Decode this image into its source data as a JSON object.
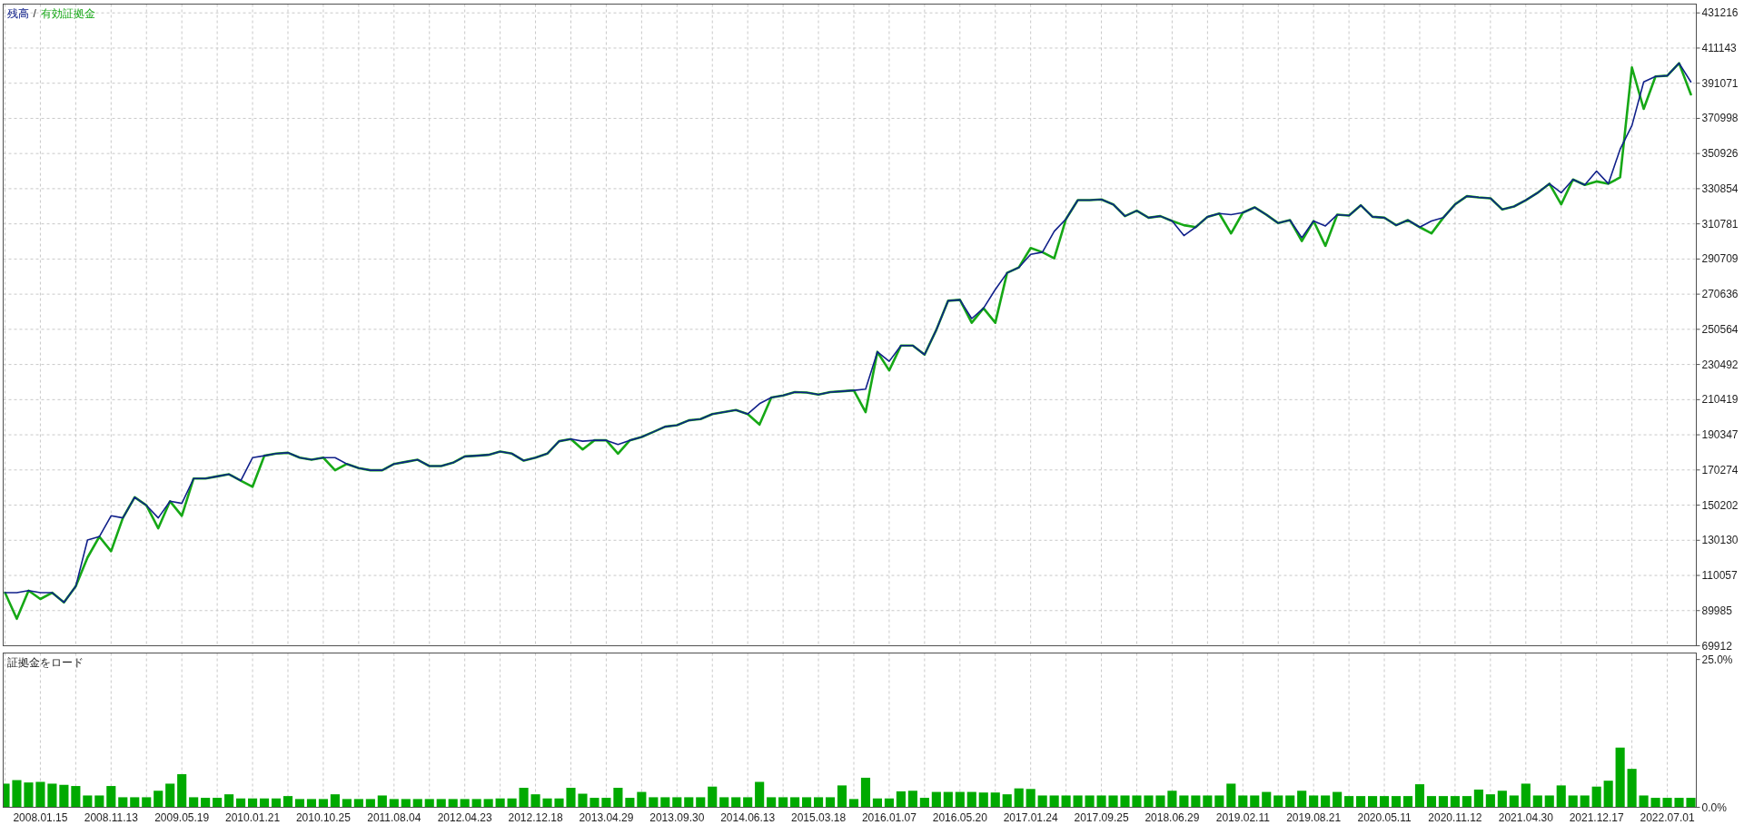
{
  "chart_data": [
    {
      "type": "line",
      "legend": "top left",
      "annotations": [
        "/"
      ],
      "grid": true,
      "tick_labels": "y",
      "categories": [
        null,
        null,
        null,
        "2008.01.15",
        null,
        null,
        null,
        null,
        null,
        "2008.11.13",
        null,
        null,
        null,
        null,
        null,
        "2009.05.19",
        null,
        null,
        null,
        null,
        null,
        "2010.01.21",
        null,
        null,
        null,
        null,
        null,
        "2010.10.25",
        null,
        null,
        null,
        null,
        null,
        "2011.08.04",
        null,
        null,
        null,
        null,
        null,
        "2012.04.23",
        null,
        null,
        null,
        null,
        null,
        "2012.12.18",
        null,
        null,
        null,
        null,
        null,
        "2013.04.29",
        null,
        null,
        null,
        null,
        null,
        "2013.09.30",
        null,
        null,
        null,
        null,
        null,
        "2014.06.13",
        null,
        null,
        null,
        null,
        null,
        "2015.03.18",
        null,
        null,
        null,
        null,
        null,
        "2016.01.07",
        null,
        null,
        null,
        null,
        null,
        "2016.05.20",
        null,
        null,
        null,
        null,
        null,
        "2017.01.24",
        null,
        null,
        null,
        null,
        null,
        "2017.09.25",
        null,
        null,
        null,
        null,
        null,
        "2018.06.29",
        null,
        null,
        null,
        null,
        null,
        "2019.02.11",
        null,
        null,
        null,
        null,
        null,
        "2019.08.21",
        null,
        null,
        null,
        null,
        null,
        "2020.05.11",
        null,
        null,
        null,
        null,
        null,
        "2020.11.12",
        null,
        null,
        null,
        null,
        null,
        "2021.04.30",
        null,
        null,
        null,
        null,
        null,
        "2021.12.17",
        null,
        null,
        null,
        null,
        null,
        "2022.07.01",
        null,
        null
      ],
      "ylim": [
        69912,
        436250
      ],
      "yticks": [
        69912,
        89985,
        110057,
        130130,
        150202,
        170274,
        190347,
        210419,
        230492,
        250564,
        270636,
        290709,
        310781,
        330854,
        350926,
        370998,
        391071,
        411143,
        431216
      ],
      "series": [
        {
          "name": "残高",
          "color": "#10208a",
          "values": [
            100200,
            100200,
            101400,
            100200,
            100200,
            94700,
            103800,
            130300,
            132200,
            144100,
            142900,
            154700,
            150000,
            142900,
            152400,
            151200,
            165400,
            165400,
            166600,
            167800,
            164200,
            177300,
            178400,
            179600,
            180100,
            177300,
            176100,
            177300,
            177300,
            173700,
            171300,
            170100,
            170100,
            173700,
            174900,
            176100,
            172500,
            172500,
            174400,
            178000,
            178400,
            178900,
            180800,
            179600,
            175600,
            177300,
            179600,
            186700,
            187900,
            186700,
            187200,
            187200,
            184800,
            187200,
            189100,
            192000,
            195000,
            195800,
            198600,
            199300,
            202200,
            203300,
            204500,
            202200,
            208100,
            211600,
            212800,
            214700,
            214500,
            213300,
            214700,
            215200,
            215700,
            216400,
            237700,
            232300,
            241300,
            241300,
            236100,
            250300,
            266900,
            267400,
            256700,
            262600,
            273300,
            282800,
            285900,
            293400,
            294600,
            306500,
            313600,
            324300,
            324300,
            324700,
            321900,
            315200,
            318300,
            314300,
            315200,
            312400,
            304100,
            308900,
            314800,
            316700,
            316000,
            317200,
            320200,
            316000,
            311200,
            312900,
            302900,
            312400,
            309600,
            316000,
            315500,
            321400,
            314800,
            314300,
            310000,
            312900,
            308900,
            312400,
            314300,
            321900,
            326600,
            325900,
            325400,
            319000,
            320700,
            324300,
            328500,
            333700,
            328500,
            336100,
            333000,
            340900,
            333700,
            353400,
            366900,
            391800,
            394900,
            395400,
            402500,
            391800
          ]
        },
        {
          "name": "有効証拠金",
          "color": "#16a816",
          "values": [
            100200,
            85300,
            101400,
            96600,
            100200,
            94700,
            103800,
            120300,
            132200,
            123900,
            142900,
            154700,
            150000,
            137000,
            152400,
            144100,
            165400,
            165400,
            166600,
            167800,
            164200,
            160700,
            178400,
            179600,
            180100,
            177300,
            176100,
            177300,
            170100,
            173700,
            171300,
            170100,
            170100,
            173700,
            174900,
            176100,
            172500,
            172500,
            174400,
            178000,
            178400,
            178900,
            180800,
            179600,
            175600,
            177300,
            179600,
            186700,
            187900,
            182000,
            187200,
            187200,
            179600,
            187200,
            189100,
            192000,
            195000,
            195800,
            198600,
            199300,
            202200,
            203300,
            204500,
            202200,
            196200,
            211600,
            212800,
            214700,
            214500,
            213300,
            214700,
            215200,
            215700,
            203300,
            237700,
            227100,
            241300,
            241300,
            236100,
            250300,
            266900,
            267400,
            254300,
            262600,
            254300,
            282800,
            285900,
            297000,
            294600,
            291100,
            313600,
            324300,
            324300,
            324700,
            321900,
            315200,
            318300,
            314300,
            315200,
            312400,
            310000,
            308900,
            314800,
            316700,
            305300,
            317200,
            320200,
            316000,
            311200,
            312900,
            301000,
            312400,
            298200,
            316000,
            315500,
            321400,
            314800,
            314300,
            310000,
            312900,
            308900,
            305300,
            314300,
            321900,
            326600,
            325900,
            325400,
            319000,
            320700,
            324300,
            328500,
            333700,
            321900,
            336100,
            333000,
            335000,
            333700,
            337300,
            400100,
            376400,
            394900,
            395400,
            402500,
            384700
          ]
        }
      ]
    },
    {
      "type": "bar",
      "title": "証拠金をロード",
      "grid": "x",
      "color": "#00aa00",
      "categories": [
        null,
        null,
        null,
        "2008.01.15",
        null,
        null,
        null,
        null,
        null,
        "2008.11.13",
        null,
        null,
        null,
        null,
        null,
        "2009.05.19",
        null,
        null,
        null,
        null,
        null,
        "2010.01.21",
        null,
        null,
        null,
        null,
        null,
        "2010.10.25",
        null,
        null,
        null,
        null,
        null,
        "2011.08.04",
        null,
        null,
        null,
        null,
        null,
        "2012.04.23",
        null,
        null,
        null,
        null,
        null,
        "2012.12.18",
        null,
        null,
        null,
        null,
        null,
        "2013.04.29",
        null,
        null,
        null,
        null,
        null,
        "2013.09.30",
        null,
        null,
        null,
        null,
        null,
        "2014.06.13",
        null,
        null,
        null,
        null,
        null,
        "2015.03.18",
        null,
        null,
        null,
        null,
        null,
        "2016.01.07",
        null,
        null,
        null,
        null,
        null,
        "2016.05.20",
        null,
        null,
        null,
        null,
        null,
        "2017.01.24",
        null,
        null,
        null,
        null,
        null,
        "2017.09.25",
        null,
        null,
        null,
        null,
        null,
        "2018.06.29",
        null,
        null,
        null,
        null,
        null,
        "2019.02.11",
        null,
        null,
        null,
        null,
        null,
        "2019.08.21",
        null,
        null,
        null,
        null,
        null,
        "2020.05.11",
        null,
        null,
        null,
        null,
        null,
        "2020.11.12",
        null,
        null,
        null,
        null,
        null,
        "2021.04.30",
        null,
        null,
        null,
        null,
        null,
        "2021.12.17",
        null,
        null,
        null,
        null,
        null,
        "2022.07.01",
        null,
        null
      ],
      "ylim": [
        0,
        26.1
      ],
      "yticks": [
        {
          "value": 0,
          "label": "0.0%"
        },
        {
          "value": 25,
          "label": "25.0%"
        }
      ],
      "values": [
        4.0,
        4.6,
        4.2,
        4.3,
        4.0,
        3.8,
        3.6,
        2.0,
        2.0,
        3.6,
        1.7,
        1.7,
        1.7,
        2.8,
        4.0,
        5.6,
        1.7,
        1.6,
        1.6,
        2.2,
        1.5,
        1.5,
        1.5,
        1.5,
        1.9,
        1.4,
        1.4,
        1.4,
        2.2,
        1.4,
        1.4,
        1.4,
        2.0,
        1.4,
        1.4,
        1.4,
        1.4,
        1.4,
        1.4,
        1.4,
        1.4,
        1.4,
        1.5,
        1.5,
        3.3,
        2.2,
        1.5,
        1.5,
        3.3,
        2.3,
        1.6,
        1.6,
        3.3,
        1.6,
        2.6,
        1.7,
        1.7,
        1.7,
        1.7,
        1.7,
        3.5,
        1.7,
        1.7,
        1.7,
        4.3,
        1.7,
        1.7,
        1.7,
        1.7,
        1.7,
        1.7,
        3.7,
        1.4,
        5.0,
        1.5,
        1.5,
        2.7,
        2.8,
        1.6,
        2.6,
        2.6,
        2.6,
        2.6,
        2.5,
        2.5,
        2.2,
        3.2,
        3.1,
        2.0,
        2.0,
        2.0,
        2.0,
        2.0,
        2.0,
        2.0,
        2.0,
        2.0,
        2.0,
        2.0,
        2.8,
        2.0,
        2.0,
        2.0,
        2.0,
        4.0,
        2.0,
        2.0,
        2.6,
        2.0,
        2.0,
        2.8,
        2.0,
        2.0,
        2.6,
        1.9,
        1.9,
        1.9,
        1.9,
        1.9,
        1.9,
        3.9,
        1.9,
        1.9,
        1.9,
        1.9,
        3.0,
        2.2,
        2.8,
        2.0,
        4.0,
        2.0,
        2.0,
        3.7,
        2.0,
        2.0,
        3.5,
        4.5,
        10.1,
        6.5,
        2.0,
        1.6,
        1.6,
        1.6,
        1.6
      ]
    }
  ]
}
